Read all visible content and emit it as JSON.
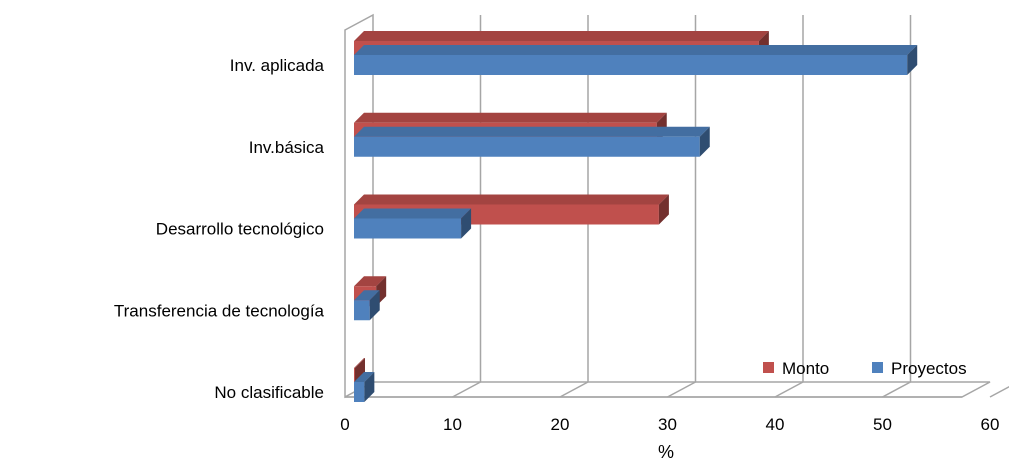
{
  "chart_data": {
    "type": "bar",
    "orientation": "horizontal",
    "style": "3d-clustered",
    "categories": [
      "Inv. aplicada",
      "Inv.básica",
      "Desarrollo tecnológico",
      "Transferencia de tecnología",
      "No clasificable"
    ],
    "series": [
      {
        "name": "Monto",
        "color": "#C0504D",
        "values": [
          38.5,
          29.0,
          29.2,
          2.9,
          0.7
        ]
      },
      {
        "name": "Proyectos",
        "color": "#4F81BD",
        "values": [
          52.3,
          33.0,
          10.8,
          2.3,
          1.8
        ]
      }
    ],
    "xlabel": "%",
    "xlim": [
      0,
      60
    ],
    "ticks": [
      "0",
      "10",
      "20",
      "30",
      "40",
      "50",
      "60"
    ],
    "grid": true,
    "legend": "bottom-right"
  }
}
